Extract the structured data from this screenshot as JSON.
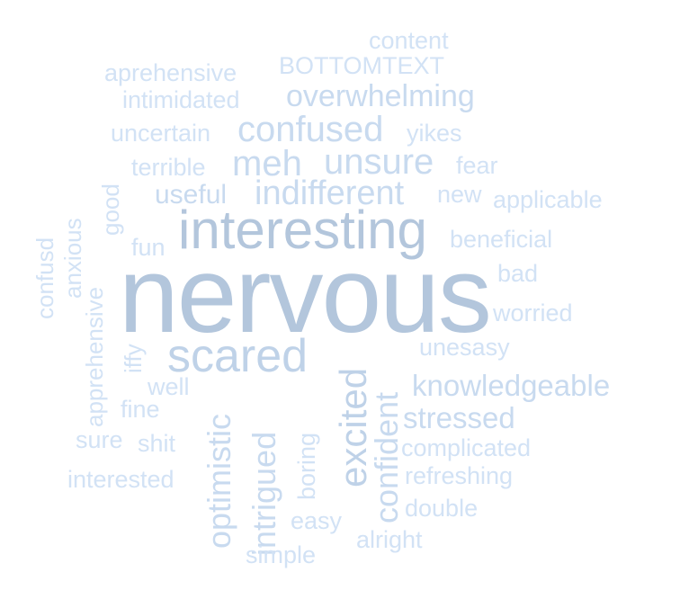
{
  "words": [
    "nervous",
    "interesting",
    "scared",
    "excited",
    "confident",
    "intrigued",
    "optimistic",
    "confused",
    "unsure",
    "meh",
    "indifferent",
    "overwhelming",
    "knowledgeable",
    "stressed",
    "useful",
    "content",
    "BOTTOMTEXT",
    "aprehensive",
    "intimidated",
    "uncertain",
    "yikes",
    "terrible",
    "fear",
    "new",
    "applicable",
    "beneficial",
    "bad",
    "worried",
    "unesasy",
    "fun",
    "good",
    "anxious",
    "confusd",
    "apprehensive",
    "iffy",
    "well",
    "fine",
    "sure",
    "shit",
    "interested",
    "complicated",
    "refreshing",
    "double",
    "boring",
    "easy",
    "alright",
    "simple"
  ]
}
